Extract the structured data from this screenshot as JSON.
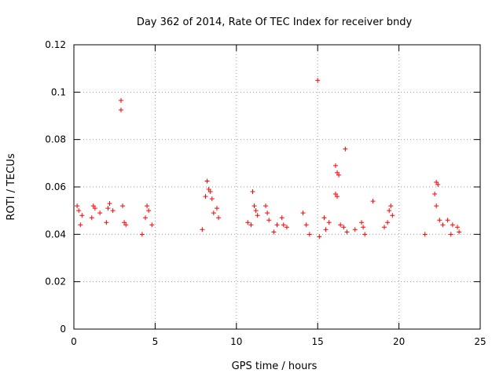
{
  "chart_data": {
    "type": "scatter",
    "title": "Day 362 of 2014, Rate Of TEC Index for receiver bndy",
    "xlabel": "GPS time / hours",
    "ylabel": "ROTI / TECUs",
    "xlim": [
      0,
      25
    ],
    "ylim": [
      0,
      0.12
    ],
    "xticks": [
      0,
      5,
      10,
      15,
      20,
      25
    ],
    "xtick_labels": [
      "0",
      "5",
      "10",
      "15",
      "20",
      "25"
    ],
    "yticks": [
      0,
      0.02,
      0.04,
      0.06,
      0.08,
      0.1,
      0.12
    ],
    "ytick_labels": [
      "0",
      "0.02",
      "0.04",
      "0.06",
      "0.08",
      "0.1",
      "0.12"
    ],
    "grid": true,
    "marker": "+",
    "color": "#ff0000",
    "series": [
      {
        "name": "ROTI",
        "points": [
          [
            2.9,
            0.0965
          ],
          [
            2.9,
            0.0925
          ],
          [
            15.0,
            0.105
          ],
          [
            16.7,
            0.076
          ],
          [
            16.1,
            0.069
          ],
          [
            16.2,
            0.066
          ],
          [
            16.3,
            0.065
          ],
          [
            16.1,
            0.057
          ],
          [
            16.2,
            0.056
          ],
          [
            8.2,
            0.0625
          ],
          [
            8.3,
            0.059
          ],
          [
            8.4,
            0.058
          ],
          [
            8.1,
            0.056
          ],
          [
            8.5,
            0.055
          ],
          [
            11.0,
            0.058
          ],
          [
            22.3,
            0.062
          ],
          [
            22.4,
            0.061
          ],
          [
            22.2,
            0.057
          ],
          [
            22.3,
            0.052
          ],
          [
            18.4,
            0.054
          ],
          [
            0.2,
            0.052
          ],
          [
            0.3,
            0.05
          ],
          [
            0.5,
            0.048
          ],
          [
            0.4,
            0.044
          ],
          [
            1.2,
            0.052
          ],
          [
            1.3,
            0.051
          ],
          [
            1.1,
            0.047
          ],
          [
            1.6,
            0.049
          ],
          [
            2.1,
            0.051
          ],
          [
            2.2,
            0.053
          ],
          [
            2.4,
            0.05
          ],
          [
            2.0,
            0.045
          ],
          [
            3.0,
            0.052
          ],
          [
            3.1,
            0.045
          ],
          [
            3.2,
            0.044
          ],
          [
            4.5,
            0.052
          ],
          [
            4.6,
            0.05
          ],
          [
            4.4,
            0.047
          ],
          [
            4.8,
            0.044
          ],
          [
            4.2,
            0.04
          ],
          [
            8.8,
            0.051
          ],
          [
            8.6,
            0.049
          ],
          [
            8.9,
            0.047
          ],
          [
            7.9,
            0.042
          ],
          [
            11.1,
            0.052
          ],
          [
            11.2,
            0.05
          ],
          [
            11.3,
            0.048
          ],
          [
            10.7,
            0.045
          ],
          [
            10.9,
            0.044
          ],
          [
            11.8,
            0.052
          ],
          [
            11.9,
            0.049
          ],
          [
            12.0,
            0.046
          ],
          [
            12.3,
            0.041
          ],
          [
            12.5,
            0.044
          ],
          [
            12.8,
            0.047
          ],
          [
            12.9,
            0.044
          ],
          [
            13.1,
            0.043
          ],
          [
            14.1,
            0.049
          ],
          [
            14.3,
            0.044
          ],
          [
            14.5,
            0.04
          ],
          [
            15.4,
            0.047
          ],
          [
            15.5,
            0.042
          ],
          [
            15.1,
            0.039
          ],
          [
            15.7,
            0.045
          ],
          [
            16.4,
            0.044
          ],
          [
            16.6,
            0.043
          ],
          [
            16.8,
            0.041
          ],
          [
            17.3,
            0.042
          ],
          [
            17.7,
            0.045
          ],
          [
            17.8,
            0.043
          ],
          [
            17.9,
            0.04
          ],
          [
            19.1,
            0.043
          ],
          [
            19.4,
            0.05
          ],
          [
            19.5,
            0.052
          ],
          [
            19.6,
            0.048
          ],
          [
            19.3,
            0.045
          ],
          [
            22.5,
            0.046
          ],
          [
            22.7,
            0.044
          ],
          [
            23.0,
            0.046
          ],
          [
            23.3,
            0.044
          ],
          [
            23.6,
            0.043
          ],
          [
            23.7,
            0.041
          ],
          [
            23.2,
            0.04
          ],
          [
            21.6,
            0.04
          ]
        ]
      }
    ]
  }
}
